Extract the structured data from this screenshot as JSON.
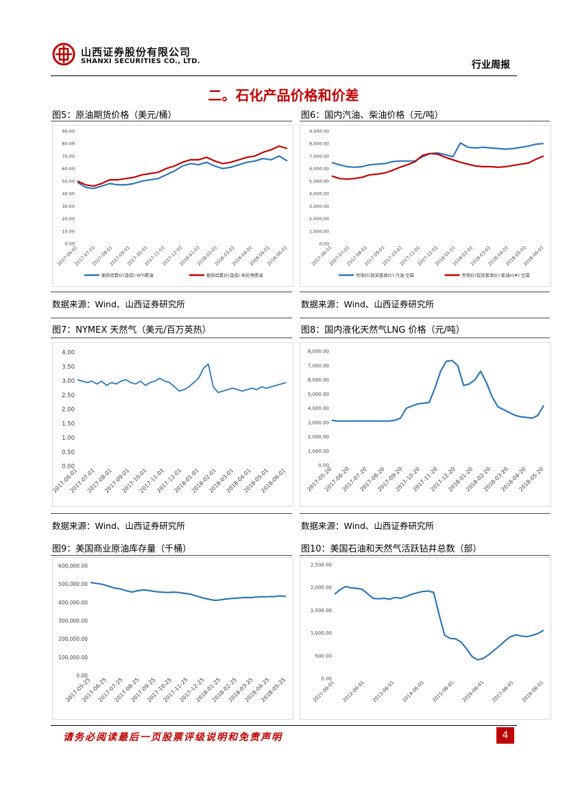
{
  "header": {
    "company_cn": "山西证券股份有限公司",
    "company_en": "SHANXI SECURITIES CO., LTD.",
    "report_type": "行业周报",
    "brand_color": "#c00000"
  },
  "section_title": "二。石化产品价格和价差",
  "figures": [
    {
      "caption": "图5：原油期货价格（美元/桶）",
      "source": "数据来源：Wind、山西证券研究所"
    },
    {
      "caption": "图6：国内汽油、柴油价格（元/吨）",
      "source": "数据来源：Wind、山西证券研究所"
    },
    {
      "caption": "图7：NYMEX 天然气（美元/百万英热）",
      "source": "数据来源：Wind、山西证券研究所"
    },
    {
      "caption": "图8：国内液化天然气LNG 价格（元/吨）",
      "source": "数据来源：Wind、山西证券研究所"
    },
    {
      "caption": "图9：美国商业原油库存量（千桶）",
      "source": ""
    },
    {
      "caption": "图10：美国石油和天然气活跃钻井总数（部）",
      "source": ""
    }
  ],
  "footer": {
    "disclaimer": "请务必阅读最后一页股票评级说明和免责声明",
    "page_number": "4"
  },
  "chart_data": [
    {
      "type": "line",
      "y_ticks": [
        "0.00",
        "10.00",
        "20.00",
        "30.00",
        "40.00",
        "50.00",
        "60.00",
        "70.00",
        "80.00",
        "90.00"
      ],
      "ylim": [
        0,
        90
      ],
      "x_ticks": [
        "2017-06-01",
        "2017-07-01",
        "2017-08-01",
        "2017-09-01",
        "2017-10-01",
        "2017-11-01",
        "2017-12-01",
        "2018-01-01",
        "2018-02-01",
        "2018-03-01",
        "2018-04-01",
        "2018-05-01",
        "2018-06-01"
      ],
      "series": [
        {
          "name": "期货结算价(连续):WTI原油",
          "color": "#2e75b6",
          "values": [
            49,
            45,
            44,
            46,
            48,
            47,
            47,
            48,
            50,
            51,
            52,
            55,
            58,
            62,
            64,
            63,
            65,
            62,
            60,
            61,
            63,
            65,
            66,
            68,
            67,
            70,
            66
          ]
        },
        {
          "name": "期货结算价(连续):布伦特原油",
          "color": "#c00000",
          "values": [
            50,
            47,
            46,
            48,
            51,
            51,
            52,
            53,
            55,
            56,
            57,
            60,
            62,
            65,
            67,
            67,
            69,
            66,
            64,
            65,
            67,
            69,
            70,
            73,
            75,
            78,
            76
          ]
        }
      ]
    },
    {
      "type": "line",
      "y_ticks": [
        "0.00",
        "1,000.00",
        "2,000.00",
        "3,000.00",
        "4,000.00",
        "5,000.00",
        "6,000.00",
        "7,000.00",
        "8,000.00",
        "9,000.00"
      ],
      "ylim": [
        0,
        9000
      ],
      "x_ticks": [
        "2017-06-01",
        "2017-07-01",
        "2017-08-01",
        "2017-09-01",
        "2017-10-01",
        "2017-11-01",
        "2017-12-01",
        "2018-01-01",
        "2018-02-01",
        "2018-03-01",
        "2018-04-01",
        "2018-05-01",
        "2018-06-01"
      ],
      "series": [
        {
          "name": "市场价(现货基准价):汽油:全国",
          "color": "#2e75b6",
          "values": [
            6480,
            6300,
            6150,
            6100,
            6150,
            6300,
            6350,
            6400,
            6550,
            6600,
            6600,
            6600,
            6950,
            7200,
            7250,
            7100,
            6950,
            8050,
            7700,
            7650,
            7700,
            7650,
            7600,
            7550,
            7600,
            7700,
            7800,
            7950,
            8000
          ]
        },
        {
          "name": "市场价(现货基准价):柴油(0#):全国",
          "color": "#c00000",
          "values": [
            5400,
            5200,
            5150,
            5200,
            5300,
            5500,
            5550,
            5650,
            5850,
            6100,
            6300,
            6550,
            7050,
            7200,
            7150,
            6900,
            6700,
            6500,
            6350,
            6200,
            6150,
            6150,
            6100,
            6150,
            6250,
            6350,
            6450,
            6750,
            7000
          ]
        }
      ]
    },
    {
      "type": "line",
      "y_ticks": [
        "0.00",
        "0.50",
        "1.00",
        "1.50",
        "2.00",
        "2.50",
        "3.00",
        "3.50",
        "4.00"
      ],
      "ylim": [
        0,
        4
      ],
      "x_ticks": [
        "2017-06-01",
        "2017-07-01",
        "2017-08-01",
        "2017-09-01",
        "2017-10-01",
        "2017-11-01",
        "2017-12-01",
        "2018-01-01",
        "2018-02-01",
        "2018-03-01",
        "2018-04-01",
        "2018-05-01",
        "2018-06-01"
      ],
      "series": [
        {
          "name": "",
          "color": "#2e75b6",
          "values": [
            3.05,
            3.0,
            2.95,
            3.0,
            2.9,
            3.0,
            2.85,
            2.95,
            2.9,
            3.0,
            3.05,
            2.95,
            2.9,
            3.0,
            2.85,
            2.95,
            3.0,
            3.1,
            3.0,
            2.95,
            2.8,
            2.65,
            2.7,
            2.8,
            2.95,
            3.1,
            3.45,
            3.6,
            2.8,
            2.6,
            2.65,
            2.7,
            2.75,
            2.7,
            2.65,
            2.7,
            2.75,
            2.7,
            2.8,
            2.75,
            2.8,
            2.85,
            2.9,
            2.95
          ]
        }
      ]
    },
    {
      "type": "line",
      "y_ticks": [
        "0.00",
        "1,000.00",
        "2,000.00",
        "3,000.00",
        "4,000.00",
        "5,000.00",
        "6,000.00",
        "7,000.00",
        "8,000.00"
      ],
      "ylim": [
        0,
        8000
      ],
      "x_ticks": [
        "2017-05-20",
        "2017-06-20",
        "2017-07-20",
        "2017-08-20",
        "2017-09-20",
        "2017-10-20",
        "2017-11-20",
        "2017-12-20",
        "2018-01-20",
        "2018-02-20",
        "2018-03-20",
        "2018-04-20",
        "2018-05-20"
      ],
      "series": [
        {
          "name": "",
          "color": "#2e75b6",
          "values": [
            3150,
            3100,
            3100,
            3100,
            3100,
            3100,
            3100,
            3100,
            3100,
            3100,
            3100,
            3150,
            3300,
            4000,
            4150,
            4300,
            4350,
            4400,
            5400,
            6600,
            7300,
            7350,
            7000,
            5600,
            5700,
            6000,
            6600,
            5800,
            4800,
            4100,
            3900,
            3700,
            3500,
            3400,
            3350,
            3300,
            3500,
            4200
          ]
        }
      ]
    },
    {
      "type": "line",
      "y_ticks": [
        "0.00",
        "100,000.00",
        "200,000.00",
        "300,000.00",
        "400,000.00",
        "500,000.00",
        "600,000.00"
      ],
      "ylim": [
        0,
        600000
      ],
      "x_ticks": [
        "2017-05-25",
        "2017-06-25",
        "2017-07-25",
        "2017-08-25",
        "2017-09-25",
        "2017-10-25",
        "2017-11-25",
        "2017-12-25",
        "2018-01-25",
        "2018-02-25",
        "2018-03-25",
        "2018-04-25",
        "2018-05-25"
      ],
      "series": [
        {
          "name": "",
          "color": "#2e75b6",
          "values": [
            510000,
            505000,
            500000,
            490000,
            480000,
            475000,
            465000,
            458000,
            465000,
            470000,
            465000,
            460000,
            457000,
            455000,
            457000,
            455000,
            450000,
            445000,
            435000,
            425000,
            418000,
            412000,
            415000,
            420000,
            423000,
            425000,
            428000,
            427000,
            430000,
            432000,
            432000,
            433000,
            436000,
            434000
          ]
        }
      ]
    },
    {
      "type": "line",
      "y_ticks": [
        "0.00",
        "500.00",
        "1,000.00",
        "1,500.00",
        "2,000.00",
        "2,500.00"
      ],
      "ylim": [
        0,
        2500
      ],
      "x_ticks": [
        "2011-06-01",
        "2012-06-01",
        "2013-06-01",
        "2014-06-01",
        "2015-06-01",
        "2016-06-01",
        "2017-06-01",
        "2018-06-01"
      ],
      "series": [
        {
          "name": "",
          "color": "#2e75b6",
          "values": [
            1850,
            1950,
            2020,
            1990,
            1980,
            1960,
            1860,
            1760,
            1750,
            1760,
            1740,
            1780,
            1760,
            1800,
            1850,
            1880,
            1910,
            1920,
            1890,
            1400,
            950,
            880,
            870,
            800,
            650,
            480,
            410,
            440,
            520,
            620,
            720,
            830,
            920,
            960,
            930,
            920,
            950,
            990,
            1060
          ]
        }
      ]
    }
  ]
}
